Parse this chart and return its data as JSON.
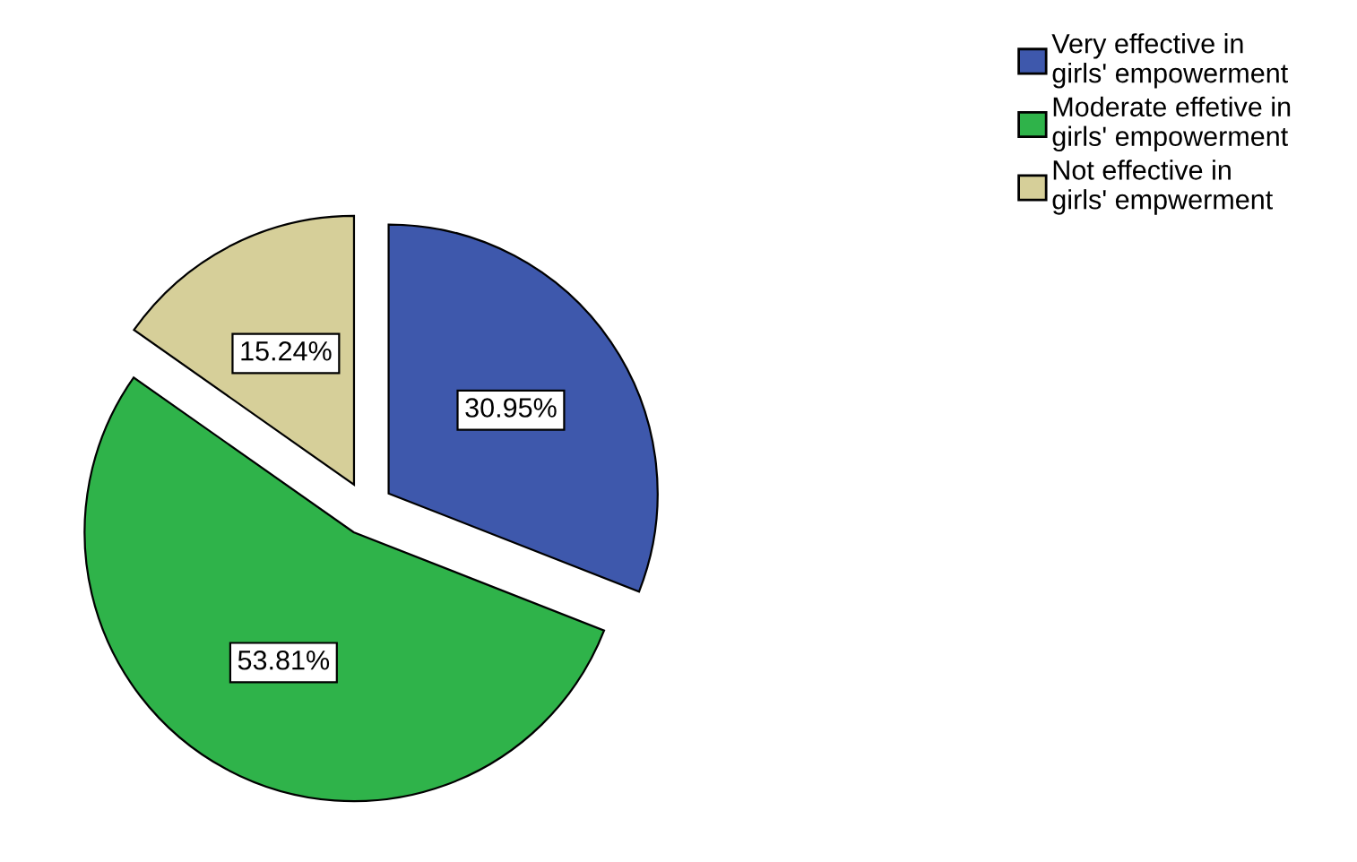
{
  "chart_data": {
    "type": "pie",
    "categories": [
      "Very effective in girls' empowerment",
      "Moderate effetive in girls' empowerment",
      "Not effective in girls' empwerment"
    ],
    "values": [
      30.95,
      53.81,
      15.24
    ],
    "colors": [
      "#3e58ac",
      "#2fb34a",
      "#d6cf99"
    ],
    "value_labels": [
      "30.95%",
      "53.81%",
      "15.24%"
    ],
    "legend": "top right"
  }
}
